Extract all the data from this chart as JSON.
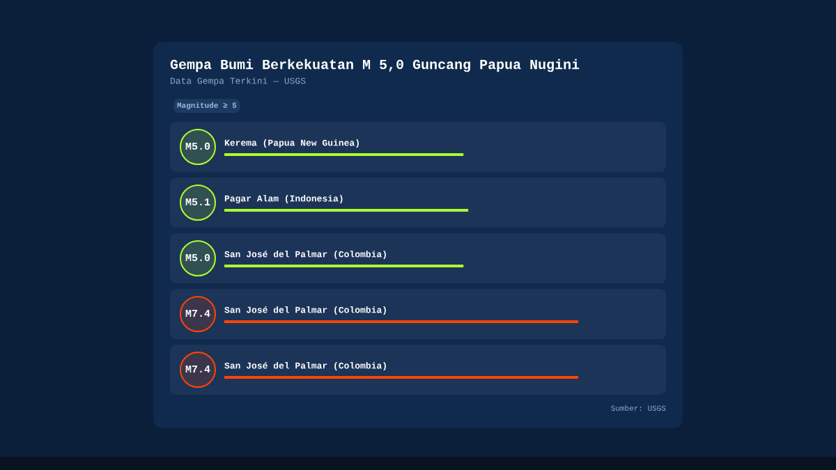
{
  "chart_data": {
    "type": "bar",
    "orientation": "horizontal",
    "title": "Gempa Bumi Berkekuatan M 5,0 Guncang Papua Nugini",
    "subtitle": "Data Gempa Terkini — USGS",
    "categories": [
      "Kerema (Papua New Guinea)",
      "Pagar Alam (Indonesia)",
      "San José del Palmar (Colombia)",
      "San José del Palmar (Colombia)",
      "San José del Palmar (Colombia)"
    ],
    "values": [
      5.0,
      5.1,
      5.0,
      7.4,
      7.4
    ],
    "value_labels": [
      "M5.0",
      "M5.1",
      "M5.0",
      "M7.4",
      "M7.4"
    ],
    "colors": [
      "#adff2f",
      "#adff2f",
      "#adff2f",
      "#ff4500",
      "#ff4500"
    ],
    "tick_labels": "y",
    "annotations": [
      "Magnitude ≥ 5",
      "Sumber: USGS"
    ]
  }
}
